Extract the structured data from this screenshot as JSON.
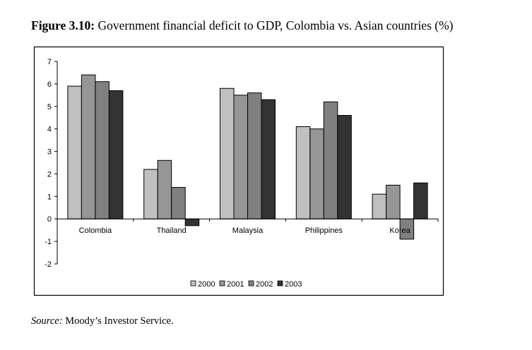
{
  "figure": {
    "label": "Figure 3.10:",
    "caption": "Government financial deficit to GDP, Colombia vs. Asian countries (%)"
  },
  "source": {
    "label": "Source:",
    "text": "Moody’s Investor Service."
  },
  "chart_data": {
    "type": "bar",
    "title": "Government financial deficit to GDP, Colombia vs. Asian countries (%)",
    "xlabel": "",
    "ylabel": "",
    "categories": [
      "Colombia",
      "Thailand",
      "Malaysia",
      "Philippines",
      "Korea"
    ],
    "series": [
      {
        "name": "2000",
        "color": "#c0c0c0",
        "values": [
          5.9,
          2.2,
          5.8,
          4.1,
          1.1
        ]
      },
      {
        "name": "2001",
        "color": "#969696",
        "values": [
          6.4,
          2.6,
          5.5,
          4.0,
          1.5
        ]
      },
      {
        "name": "2002",
        "color": "#808080",
        "values": [
          6.1,
          1.4,
          5.6,
          5.2,
          -0.9
        ]
      },
      {
        "name": "2003",
        "color": "#333333",
        "values": [
          5.7,
          -0.3,
          5.3,
          4.6,
          1.6
        ]
      }
    ],
    "ylim": [
      -2,
      7
    ],
    "yticks": [
      "-2",
      "-1",
      "0",
      "1",
      "2",
      "3",
      "4",
      "5",
      "6",
      "7"
    ],
    "grid": false,
    "legend_position": "bottom"
  }
}
